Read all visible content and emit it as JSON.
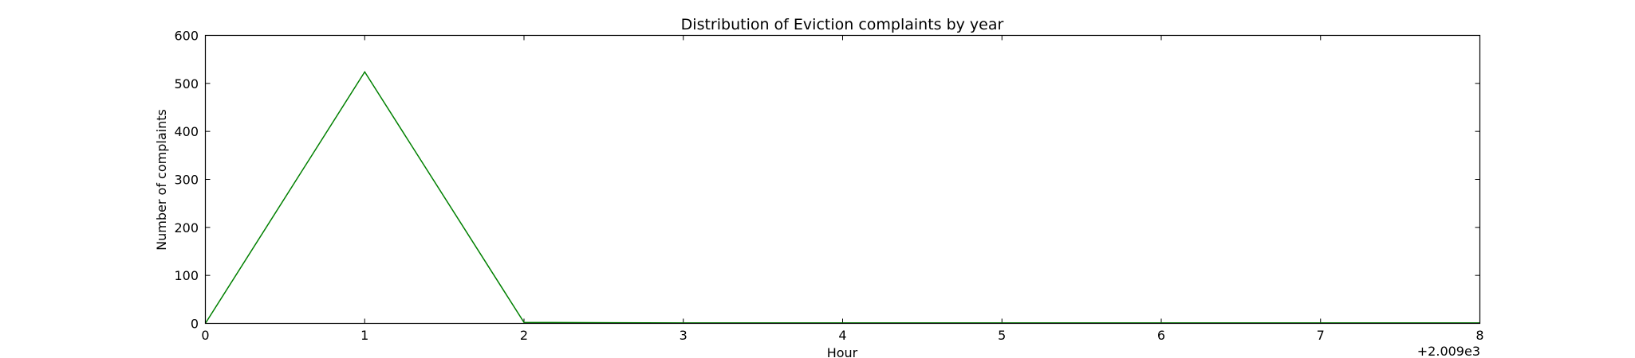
{
  "chart_data": {
    "type": "line",
    "title": "Distribution of  Eviction complaints by year",
    "xlabel": "Hour",
    "ylabel": "Number of complaints",
    "x_offset_label": "+2.009e3",
    "xlim": [
      0,
      8
    ],
    "ylim": [
      0,
      600
    ],
    "x_ticks": [
      "0",
      "1",
      "2",
      "3",
      "4",
      "5",
      "6",
      "7",
      "8"
    ],
    "y_ticks": [
      "0",
      "100",
      "200",
      "300",
      "400",
      "500",
      "600"
    ],
    "grid": false,
    "series": [
      {
        "x": [
          0,
          1,
          2,
          3,
          4,
          5,
          6,
          7,
          8
        ],
        "values": [
          0,
          524,
          2,
          1,
          1,
          1,
          1,
          1,
          1
        ],
        "color": "#008000"
      }
    ]
  }
}
